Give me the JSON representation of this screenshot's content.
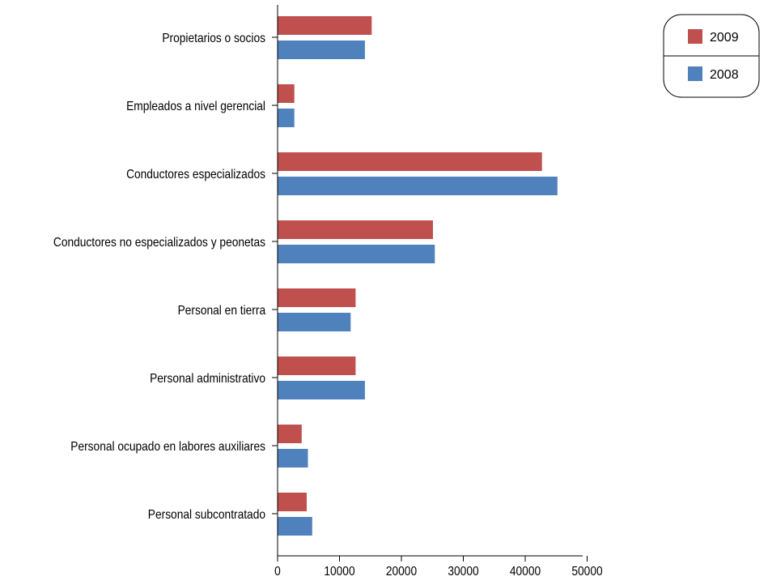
{
  "chart_data": {
    "type": "bar",
    "orientation": "horizontal",
    "categories": [
      "Propietarios o socios",
      "Empleados a nivel gerencial",
      "Conductores especializados",
      "Conductores no especializados y peonetas",
      "Personal en tierra",
      "Personal administrativo",
      "Personal ocupado en labores auxiliares",
      "Personal subcontratado"
    ],
    "series": [
      {
        "name": "2009",
        "color": "#c0504d",
        "values": [
          15200,
          2700,
          42700,
          25100,
          12600,
          12600,
          3900,
          4700
        ]
      },
      {
        "name": "2008",
        "color": "#4f81bd",
        "values": [
          14100,
          2700,
          45200,
          25400,
          11800,
          14100,
          4900,
          5600
        ]
      }
    ],
    "x_ticks": [
      "0",
      "10000",
      "20000",
      "30000",
      "40000",
      "50000"
    ],
    "xlim": [
      0,
      50000
    ],
    "title": "",
    "xlabel": "",
    "ylabel": "",
    "grid": false,
    "legend_position": "top-right"
  }
}
